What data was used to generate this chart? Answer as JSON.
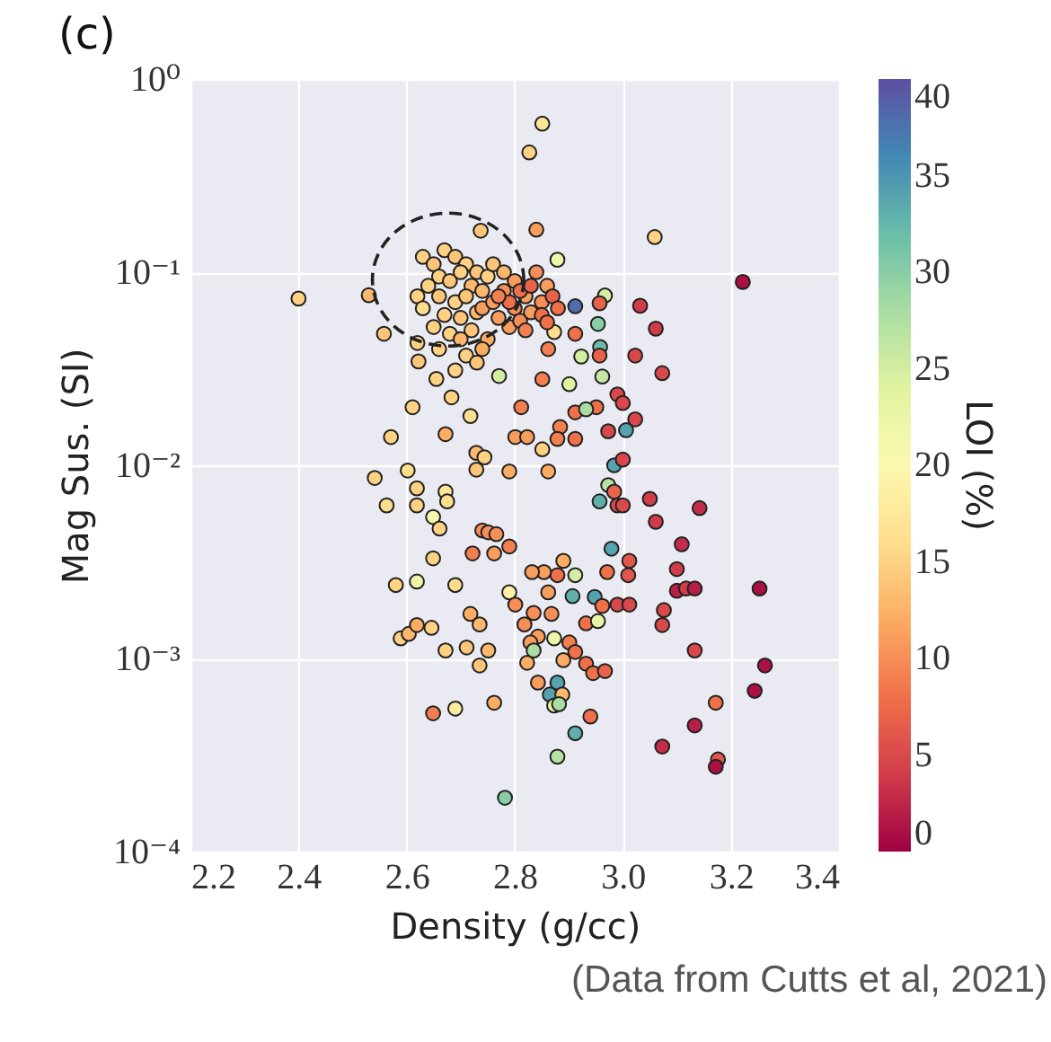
{
  "chart_data": {
    "type": "scatter",
    "title": "(c)",
    "xlabel": "Density (g/cc)",
    "ylabel": "Mag Sus. (SI)",
    "clabel": "LOI (%)",
    "annotations": [
      "(Data from Cutts et al, 2021)"
    ],
    "x": [
      2.4,
      2.53,
      2.558,
      2.611,
      2.571,
      2.672,
      2.718,
      2.683,
      2.622,
      2.655,
      2.771,
      2.812,
      2.737,
      2.827,
      2.851,
      3.059,
      3.222,
      2.84,
      2.879,
      2.912,
      2.967,
      2.957,
      3.032,
      3.061,
      3.023,
      3.073,
      2.954,
      2.958,
      2.923,
      2.912,
      2.873,
      2.962,
      2.957,
      2.901,
      2.99,
      3.0,
      2.951,
      2.912,
      2.932,
      3.023,
      3.006,
      2.973,
      2.884,
      2.879,
      2.912,
      2.851,
      2.862,
      2.801,
      2.823,
      2.851,
      2.729,
      2.744,
      2.729,
      2.79,
      2.541,
      2.602,
      2.619,
      2.672,
      2.675,
      2.563,
      2.619,
      2.649,
      2.661,
      2.74,
      2.751,
      2.766,
      2.79,
      2.762,
      2.722,
      2.649,
      2.58,
      2.619,
      2.69,
      2.79,
      2.801,
      2.718,
      2.735,
      2.589,
      2.604,
      2.619,
      2.646,
      2.672,
      2.711,
      2.751,
      2.735,
      2.823,
      2.649,
      2.69,
      2.762,
      2.782,
      2.862,
      2.984,
      3.0,
      2.973,
      2.957,
      2.99,
      3.0,
      2.984,
      3.05,
      3.061,
      3.142,
      3.109,
      3.1,
      3.1,
      3.117,
      3.133,
      3.253,
      3.076,
      3.073,
      3.133,
      3.263,
      3.244,
      3.172,
      3.133,
      3.073,
      3.176,
      3.172,
      2.979,
      3.012,
      3.01,
      2.971,
      2.948,
      2.962,
      2.99,
      3.012,
      2.932,
      2.954,
      2.912,
      2.907,
      2.89,
      2.879,
      2.854,
      2.832,
      2.862,
      2.835,
      2.868,
      2.818,
      2.843,
      2.829,
      2.873,
      2.835,
      2.901,
      2.912,
      2.932,
      2.945,
      2.967,
      2.89,
      2.843,
      2.879,
      2.865,
      2.888,
      2.873,
      2.882,
      2.94,
      2.912,
      2.879,
      2.63,
      2.65,
      2.67,
      2.69,
      2.71,
      2.73,
      2.66,
      2.68,
      2.7,
      2.72,
      2.64,
      2.62,
      2.66,
      2.69,
      2.71,
      2.74,
      2.75,
      2.63,
      2.67,
      2.7,
      2.73,
      2.65,
      2.68,
      2.72,
      2.76,
      2.78,
      2.74,
      2.76,
      2.78,
      2.77,
      2.8,
      2.82,
      2.79,
      2.81,
      2.83,
      2.85,
      2.75,
      2.7,
      2.74,
      2.8,
      2.84,
      2.86,
      2.79,
      2.81,
      2.83,
      2.85,
      2.87,
      2.88,
      2.82,
      2.86,
      2.77,
      2.62,
      2.66,
      2.71,
      2.73,
      2.69
    ],
    "values": [
      0.073,
      0.076,
      0.048,
      0.02,
      0.014,
      0.0145,
      0.018,
      0.0225,
      0.0345,
      0.028,
      0.029,
      0.02,
      0.164,
      0.417,
      0.587,
      0.152,
      0.089,
      0.166,
      0.116,
      0.0666,
      0.0757,
      0.069,
      0.067,
      0.051,
      0.037,
      0.03,
      0.054,
      0.041,
      0.0366,
      0.048,
      0.049,
      0.0288,
      0.037,
      0.0263,
      0.0233,
      0.021,
      0.02,
      0.0188,
      0.0195,
      0.0173,
      0.0152,
      0.015,
      0.0158,
      0.0137,
      0.0137,
      0.0279,
      0.04,
      0.014,
      0.014,
      0.0121,
      0.0116,
      0.011,
      0.0095,
      0.0093,
      0.0086,
      0.0094,
      0.0076,
      0.0073,
      0.0065,
      0.0062,
      0.0062,
      0.0054,
      0.0047,
      0.0046,
      0.0045,
      0.0044,
      0.0038,
      0.0035,
      0.0035,
      0.0033,
      0.0024,
      0.0025,
      0.0024,
      0.0022,
      0.0019,
      0.0017,
      0.0015,
      0.00127,
      0.00134,
      0.00149,
      0.00144,
      0.0011,
      0.00114,
      0.0011,
      0.00092,
      0.00095,
      0.00052,
      0.00055,
      0.00059,
      0.00019,
      0.0093,
      0.01,
      0.0107,
      0.0079,
      0.0065,
      0.0062,
      0.0062,
      0.0073,
      0.0067,
      0.0051,
      0.006,
      0.0039,
      0.0029,
      0.00224,
      0.0023,
      0.0023,
      0.0023,
      0.00178,
      0.00149,
      0.0011,
      0.00092,
      0.00068,
      0.00059,
      0.00045,
      0.00035,
      0.0003,
      0.000275,
      0.0037,
      0.0032,
      0.0027,
      0.0028,
      0.00208,
      0.00187,
      0.0019,
      0.0019,
      0.00152,
      0.00156,
      0.0027,
      0.0021,
      0.0032,
      0.0027,
      0.0028,
      0.0028,
      0.0022,
      0.00172,
      0.0017,
      0.0015,
      0.0013,
      0.00121,
      0.00127,
      0.0011,
      0.00121,
      0.00108,
      0.00094,
      0.00084,
      0.00086,
      0.00098,
      0.00075,
      0.00075,
      0.00065,
      0.00065,
      0.00057,
      0.00058,
      0.0005,
      0.00041,
      0.00031,
      0.12,
      0.11,
      0.13,
      0.12,
      0.11,
      0.1,
      0.095,
      0.09,
      0.1,
      0.085,
      0.085,
      0.075,
      0.075,
      0.07,
      0.075,
      0.08,
      0.095,
      0.065,
      0.06,
      0.058,
      0.062,
      0.052,
      0.048,
      0.05,
      0.11,
      0.1,
      0.065,
      0.07,
      0.08,
      0.058,
      0.065,
      0.075,
      0.052,
      0.056,
      0.062,
      0.07,
      0.045,
      0.045,
      0.04,
      0.09,
      0.1,
      0.085,
      0.07,
      0.08,
      0.085,
      0.06,
      0.075,
      0.065,
      0.05,
      0.055,
      0.075,
      0.043,
      0.04,
      0.037,
      0.034,
      0.031
    ],
    "cvalues": [
      15,
      13,
      14,
      15,
      15,
      12,
      16,
      15,
      14,
      15,
      25,
      9,
      14,
      15,
      17,
      15,
      1,
      11,
      22,
      38,
      25,
      7,
      4,
      4,
      5,
      5,
      30,
      32,
      25,
      8,
      16,
      26,
      7,
      24,
      5,
      5,
      8,
      8,
      28,
      5,
      34,
      5,
      9,
      9,
      8,
      9,
      9,
      11,
      11,
      15,
      13,
      15,
      14,
      12,
      15,
      16,
      15,
      17,
      16,
      16,
      15,
      21,
      15,
      10,
      10,
      10,
      9,
      11,
      9,
      15,
      15,
      22,
      16,
      19,
      10,
      12,
      13,
      15,
      13,
      12,
      15,
      15,
      14,
      13,
      14,
      12,
      9,
      18,
      12,
      30,
      12,
      34,
      5,
      27,
      33,
      5,
      5,
      7,
      4,
      4,
      3,
      3,
      4,
      2,
      4,
      2,
      1,
      5,
      5,
      5,
      1,
      1,
      8,
      2,
      3,
      6,
      1,
      34,
      6,
      6,
      8,
      34,
      8,
      5,
      5,
      8,
      23,
      25,
      33,
      12,
      8,
      11,
      11,
      11,
      10,
      10,
      10,
      11,
      11,
      22,
      28,
      9,
      8,
      8,
      8,
      7,
      12,
      11,
      34,
      34,
      13,
      22,
      28,
      8,
      33,
      27,
      15,
      14,
      15,
      14,
      15,
      14,
      15,
      14,
      15,
      13,
      15,
      15,
      14,
      15,
      14,
      13,
      15,
      16,
      15,
      14,
      13,
      15,
      15,
      14,
      14,
      13,
      11,
      11,
      10,
      11,
      10,
      11,
      11,
      10,
      11,
      10,
      12,
      13,
      12,
      11,
      10,
      11,
      8,
      8,
      7,
      8,
      7,
      8,
      9,
      8,
      9,
      15,
      15,
      15,
      14,
      15
    ],
    "xlim": [
      2.2,
      3.4
    ],
    "xticks": [
      2.2,
      2.4,
      2.6,
      2.8,
      {
        "value": 3,
        "label": "3.0"
      },
      3.2,
      3.4
    ],
    "log": "y",
    "ylim": [
      0.0001,
      1
    ],
    "yticks": [
      {
        "value": 1,
        "label": "10⁰"
      },
      {
        "value": 0.1,
        "label": "10⁻¹"
      },
      {
        "value": 0.01,
        "label": "10⁻²"
      },
      {
        "value": 0.001,
        "label": "10⁻³"
      },
      {
        "value": 0.0001,
        "label": "10⁻⁴"
      }
    ],
    "clim": [
      0,
      40
    ],
    "cticks": [
      0,
      5,
      10,
      15,
      20,
      25,
      30,
      35,
      40
    ],
    "grid": true,
    "marker": "circle"
  }
}
